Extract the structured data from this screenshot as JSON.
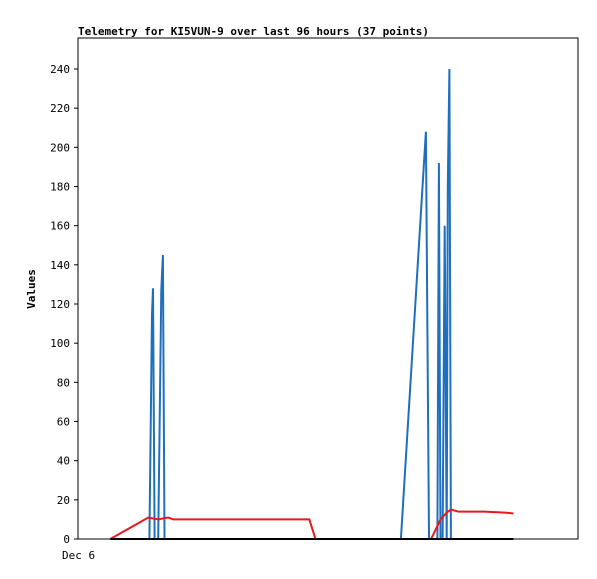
{
  "chart_data": {
    "type": "line",
    "title": "Telemetry for KI5VUN-9 over last 96 hours (37 points)",
    "xlabel": "",
    "ylabel": "Values",
    "x_tick_labels": [
      "Dec 6"
    ],
    "xlim": [
      0,
      96
    ],
    "ylim": [
      0,
      250
    ],
    "y_ticks": [
      0,
      20,
      40,
      60,
      80,
      100,
      120,
      140,
      160,
      180,
      200,
      220,
      240
    ],
    "grid": false,
    "legend": "none",
    "series": [
      {
        "color": "#1f6fbf",
        "points": [
          [
            13.7,
            0
          ],
          [
            14.2,
            115
          ],
          [
            14.4,
            128
          ],
          [
            14.7,
            0
          ],
          [
            15.4,
            0
          ],
          [
            16.0,
            127
          ],
          [
            16.3,
            145
          ],
          [
            16.6,
            0
          ],
          [
            62.0,
            0
          ],
          [
            66.8,
            208
          ],
          [
            67.4,
            0
          ],
          [
            69.0,
            0
          ],
          [
            69.3,
            192
          ],
          [
            69.6,
            0
          ],
          [
            70.0,
            0
          ],
          [
            70.4,
            160
          ],
          [
            70.8,
            0
          ],
          [
            71.0,
            180
          ],
          [
            71.3,
            240
          ],
          [
            71.6,
            0
          ]
        ]
      },
      {
        "color": "#e8191a",
        "points": [
          [
            6.2,
            0
          ],
          [
            13.5,
            11
          ],
          [
            15.4,
            10
          ],
          [
            17.3,
            11
          ],
          [
            18.3,
            10
          ],
          [
            44.4,
            10
          ],
          [
            45.6,
            0
          ],
          [
            67.8,
            0
          ],
          [
            69.6,
            10
          ],
          [
            71.0,
            14
          ],
          [
            71.7,
            15
          ],
          [
            73.0,
            14
          ],
          [
            78.0,
            14
          ],
          [
            82.0,
            13.5
          ],
          [
            83.6,
            13
          ]
        ]
      },
      {
        "color": "#000000",
        "points": [
          [
            6.2,
            0
          ],
          [
            83.6,
            0
          ]
        ]
      }
    ]
  }
}
